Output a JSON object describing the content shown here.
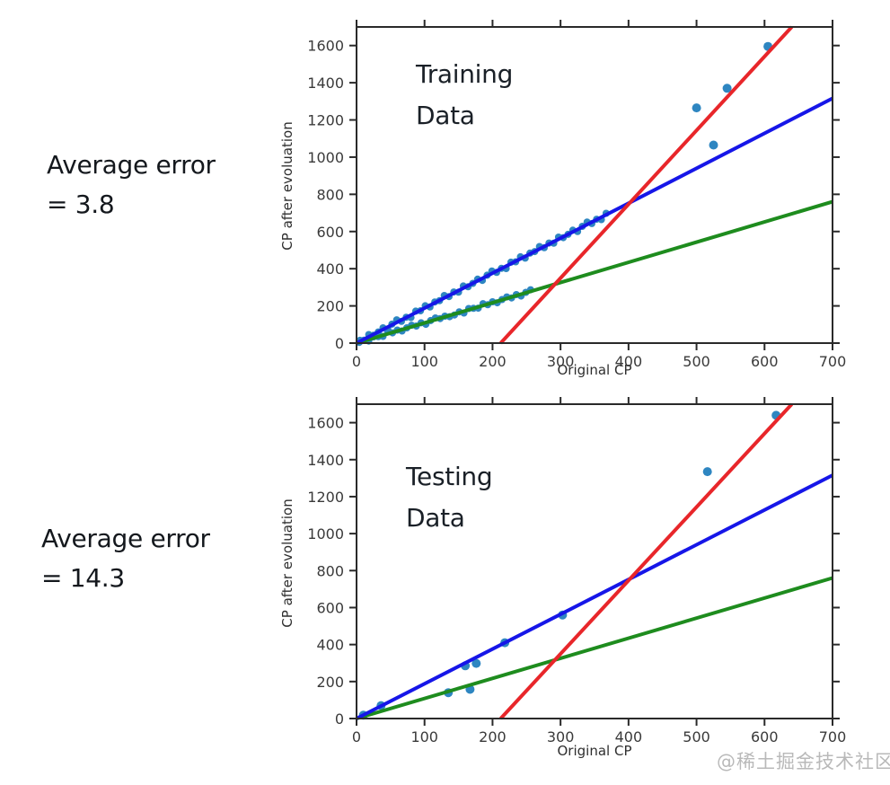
{
  "page": {
    "background": "#ffffff",
    "watermark": "@稀土掘金技术社区"
  },
  "colors": {
    "scatter": "#2e86c1",
    "blue_line": "#1616e8",
    "green_line": "#1e8c1e",
    "red_line": "#e8262a",
    "axis": "#2a2a2a",
    "tick_label": "#3a3a3a"
  },
  "labels": {
    "training_error_line1": "Average error",
    "training_error_line2": "= 3.8",
    "testing_error_line1": "Average error",
    "testing_error_line2": "= 14.3"
  },
  "chart_data": [
    {
      "type": "scatter",
      "title": "Training Data",
      "title_lines": [
        "Training",
        "Data"
      ],
      "xlabel": "Original CP",
      "ylabel": "CP after evoluation",
      "xlim": [
        0,
        700
      ],
      "ylim": [
        0,
        1700
      ],
      "x_ticks": [
        0,
        100,
        200,
        300,
        400,
        500,
        600,
        700
      ],
      "y_ticks": [
        0,
        200,
        400,
        600,
        800,
        1000,
        1200,
        1400,
        1600
      ],
      "grid": false,
      "legend": null,
      "lines": [
        {
          "name": "fit-line-green",
          "color": "green_line",
          "points": [
            [
              0,
              0
            ],
            [
              700,
              760
            ]
          ]
        },
        {
          "name": "fit-line-blue",
          "color": "blue_line",
          "points": [
            [
              0,
              0
            ],
            [
              700,
              1316
            ]
          ]
        },
        {
          "name": "fit-line-red",
          "color": "red_line",
          "points": [
            [
              212,
              0
            ],
            [
              640,
              1700
            ]
          ]
        }
      ],
      "point_groups": [
        {
          "name": "cluster-along-blue-line",
          "r": 4,
          "points": [
            [
              5,
              15
            ],
            [
              12,
              15
            ],
            [
              18,
              46
            ],
            [
              25,
              42
            ],
            [
              32,
              60
            ],
            [
              39,
              82
            ],
            [
              46,
              75
            ],
            [
              52,
              102
            ],
            [
              59,
              125
            ],
            [
              66,
              117
            ],
            [
              73,
              139
            ],
            [
              80,
              137
            ],
            [
              87,
              172
            ],
            [
              94,
              174
            ],
            [
              101,
              201
            ],
            [
              108,
              194
            ],
            [
              115,
              221
            ],
            [
              122,
              228
            ],
            [
              129,
              256
            ],
            [
              136,
              250
            ],
            [
              143,
              275
            ],
            [
              150,
              274
            ],
            [
              157,
              307
            ],
            [
              164,
              303
            ],
            [
              171,
              321
            ],
            [
              178,
              344
            ],
            [
              185,
              337
            ],
            [
              192,
              365
            ],
            [
              199,
              388
            ],
            [
              206,
              380
            ],
            [
              213,
              402
            ],
            [
              220,
              401
            ],
            [
              227,
              435
            ],
            [
              234,
              437
            ],
            [
              241,
              464
            ],
            [
              248,
              457
            ],
            [
              255,
              484
            ],
            [
              262,
              492
            ],
            [
              269,
              519
            ],
            [
              276,
              513
            ],
            [
              283,
              538
            ],
            [
              290,
              537
            ],
            [
              297,
              570
            ],
            [
              304,
              567
            ],
            [
              311,
              585
            ],
            [
              318,
              607
            ],
            [
              325,
              600
            ],
            [
              332,
              628
            ],
            [
              339,
              651
            ],
            [
              346,
              643
            ],
            [
              353,
              666
            ],
            [
              360,
              664
            ],
            [
              367,
              698
            ]
          ]
        },
        {
          "name": "cluster-along-green-line",
          "r": 4,
          "points": [
            [
              4,
              4
            ],
            [
              11,
              16
            ],
            [
              18,
              11
            ],
            [
              25,
              34
            ],
            [
              32,
              35
            ],
            [
              39,
              36
            ],
            [
              46,
              60
            ],
            [
              53,
              55
            ],
            [
              60,
              70
            ],
            [
              67,
              65
            ],
            [
              74,
              82
            ],
            [
              81,
              96
            ],
            [
              88,
              92
            ],
            [
              95,
              109
            ],
            [
              102,
              101
            ],
            [
              109,
              121
            ],
            [
              116,
              135
            ],
            [
              123,
              132
            ],
            [
              130,
              145
            ],
            [
              137,
              142
            ],
            [
              144,
              151
            ],
            [
              151,
              168
            ],
            [
              158,
              162
            ],
            [
              165,
              186
            ],
            [
              172,
              187
            ],
            [
              179,
              188
            ],
            [
              186,
              212
            ],
            [
              193,
              206
            ],
            [
              200,
              222
            ],
            [
              207,
              217
            ],
            [
              214,
              234
            ],
            [
              221,
              248
            ],
            [
              228,
              243
            ],
            [
              235,
              261
            ],
            [
              242,
              253
            ],
            [
              249,
              273
            ],
            [
              256,
              287
            ]
          ]
        },
        {
          "name": "outliers",
          "r": 5,
          "points": [
            [
              500,
              1265
            ],
            [
              525,
              1065
            ],
            [
              545,
              1370
            ],
            [
              605,
              1595
            ]
          ]
        }
      ]
    },
    {
      "type": "scatter",
      "title": "Testing Data",
      "title_lines": [
        "Testing",
        "Data"
      ],
      "xlabel": "Original CP",
      "ylabel": "CP after evoluation",
      "xlim": [
        0,
        700
      ],
      "ylim": [
        0,
        1700
      ],
      "x_ticks": [
        0,
        100,
        200,
        300,
        400,
        500,
        600,
        700
      ],
      "y_ticks": [
        0,
        200,
        400,
        600,
        800,
        1000,
        1200,
        1400,
        1600
      ],
      "grid": false,
      "legend": null,
      "lines": [
        {
          "name": "fit-line-green",
          "color": "green_line",
          "points": [
            [
              0,
              0
            ],
            [
              700,
              760
            ]
          ]
        },
        {
          "name": "fit-line-blue",
          "color": "blue_line",
          "points": [
            [
              0,
              0
            ],
            [
              700,
              1316
            ]
          ]
        },
        {
          "name": "fit-line-red",
          "color": "red_line",
          "points": [
            [
              212,
              0
            ],
            [
              640,
              1700
            ]
          ]
        }
      ],
      "point_groups": [
        {
          "name": "testing-points",
          "r": 5,
          "points": [
            [
              10,
              18
            ],
            [
              36,
              70
            ],
            [
              135,
              140
            ],
            [
              167,
              158
            ],
            [
              160,
              285
            ],
            [
              176,
              298
            ],
            [
              218,
              410
            ],
            [
              303,
              560
            ],
            [
              516,
              1335
            ],
            [
              617,
              1640
            ]
          ]
        }
      ]
    }
  ]
}
